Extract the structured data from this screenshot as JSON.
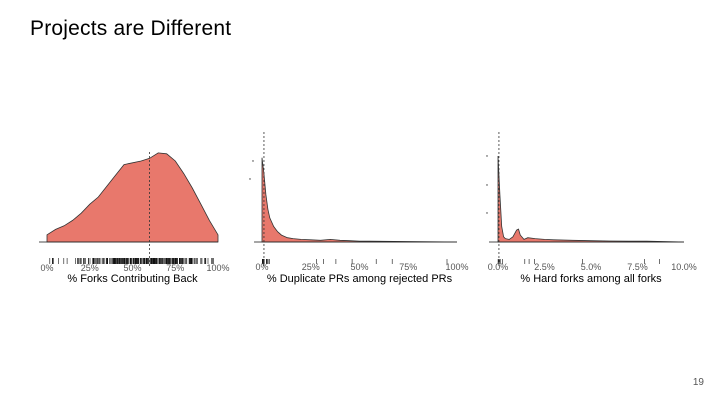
{
  "slide": {
    "title": "Projects are Different",
    "page_number": "19"
  },
  "chart_data": [
    {
      "type": "area",
      "xlabel": "% Forks Contributing Back",
      "ylabel": "",
      "x_ticks": [
        "0%",
        "25%",
        "50%",
        "75%",
        "100%"
      ],
      "xlim": [
        0,
        100
      ],
      "fill_color": "#e8786c",
      "median": 60,
      "x": [
        0,
        5,
        10,
        15,
        20,
        25,
        30,
        35,
        40,
        45,
        50,
        55,
        60,
        65,
        70,
        75,
        80,
        85,
        90,
        95,
        100
      ],
      "density": [
        0.08,
        0.14,
        0.18,
        0.24,
        0.32,
        0.42,
        0.5,
        0.62,
        0.74,
        0.86,
        0.88,
        0.9,
        0.93,
        0.99,
        0.98,
        0.9,
        0.76,
        0.6,
        0.42,
        0.24,
        0.08
      ]
    },
    {
      "type": "area",
      "xlabel": "% Duplicate PRs among rejected PRs",
      "ylabel": "",
      "x_ticks": [
        "0%",
        "25%",
        "50%",
        "75%",
        "100%"
      ],
      "xlim": [
        0,
        100
      ],
      "fill_color": "#e8786c",
      "median": 1,
      "x": [
        0,
        1,
        2,
        3,
        4,
        6,
        8,
        10,
        13,
        16,
        20,
        25,
        30,
        35,
        40,
        45,
        50,
        55,
        100
      ],
      "density": [
        0.98,
        0.8,
        0.55,
        0.38,
        0.28,
        0.18,
        0.12,
        0.08,
        0.05,
        0.04,
        0.03,
        0.025,
        0.02,
        0.03,
        0.02,
        0.015,
        0.01,
        0.01,
        0.0
      ]
    },
    {
      "type": "area",
      "xlabel": "% Hard forks among all forks",
      "ylabel": "",
      "x_ticks": [
        "0.0%",
        "2.5%",
        "5.0%",
        "7.5%",
        "10.0%"
      ],
      "xlim": [
        0,
        10
      ],
      "fill_color": "#e8786c",
      "median": 0.05,
      "x": [
        0,
        0.1,
        0.2,
        0.3,
        0.4,
        0.6,
        0.8,
        1.0,
        1.1,
        1.2,
        1.4,
        1.6,
        2.0,
        2.5,
        3.0,
        4.0,
        5.0,
        6.0,
        7.0,
        8.0,
        10.0
      ],
      "density": [
        1.0,
        0.55,
        0.18,
        0.06,
        0.04,
        0.03,
        0.06,
        0.14,
        0.15,
        0.08,
        0.03,
        0.05,
        0.04,
        0.03,
        0.025,
        0.02,
        0.015,
        0.012,
        0.01,
        0.01,
        0.0
      ]
    }
  ]
}
